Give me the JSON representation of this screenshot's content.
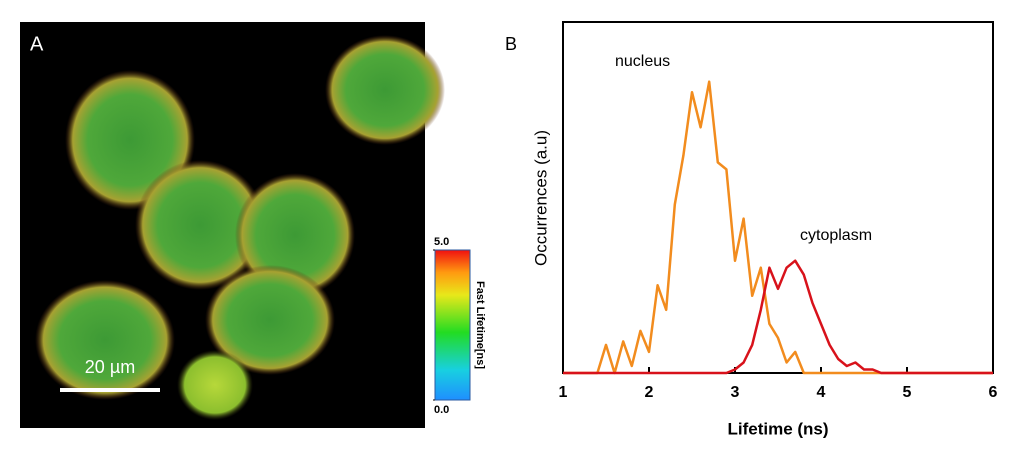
{
  "chart_data": [
    {
      "type": "image",
      "label": "A",
      "scale_bar": "20 µm",
      "colorbar": {
        "title": "Fast Lifetime[ns]",
        "clim": [
          0,
          5
        ],
        "ticks": [
          {
            "value": 0,
            "label": "0.0"
          },
          {
            "value": 5,
            "label": "5.0"
          }
        ]
      }
    },
    {
      "type": "line",
      "label": "B",
      "x_label": "Lifetime (ns)",
      "y_label": "Occurrences (a.u)",
      "annotations": [
        "nucleus",
        "cytoplasm"
      ],
      "x": [
        1.0,
        1.1,
        1.2,
        1.3,
        1.4,
        1.5,
        1.6,
        1.7,
        1.8,
        1.9,
        2.0,
        2.1,
        2.2,
        2.3,
        2.4,
        2.5,
        2.6,
        2.7,
        2.8,
        2.9,
        3.0,
        3.1,
        3.2,
        3.3,
        3.4,
        3.5,
        3.6,
        3.7,
        3.8,
        3.9,
        4.0,
        4.1,
        4.2,
        4.3,
        4.4,
        4.5,
        4.6,
        4.7,
        4.8,
        4.9,
        5.0,
        5.1,
        5.2,
        5.3,
        5.4,
        5.5,
        5.6,
        5.7,
        5.8,
        5.9,
        6.0
      ],
      "series": [
        {
          "name": "nucleus",
          "color": "#f28c1e",
          "values": [
            0,
            0,
            0,
            0,
            0,
            8,
            0,
            9,
            2,
            12,
            6,
            25,
            18,
            48,
            62,
            80,
            70,
            83,
            60,
            58,
            32,
            44,
            22,
            30,
            14,
            10,
            3,
            6,
            0,
            0,
            0,
            0,
            0,
            0,
            0,
            0,
            0,
            0,
            0,
            0,
            0,
            0,
            0,
            0,
            0,
            0,
            0,
            0,
            0,
            0,
            0
          ]
        },
        {
          "name": "cytoplasm",
          "color": "#d8121b",
          "values": [
            0,
            0,
            0,
            0,
            0,
            0,
            0,
            0,
            0,
            0,
            0,
            0,
            0,
            0,
            0,
            0,
            0,
            0,
            0,
            0,
            1,
            3,
            8,
            18,
            30,
            24,
            30,
            32,
            28,
            20,
            14,
            8,
            4,
            2,
            3,
            1,
            1,
            0,
            0,
            0,
            0,
            0,
            0,
            0,
            0,
            0,
            0,
            0,
            0,
            0,
            0
          ]
        }
      ],
      "xlim": [
        1,
        6
      ],
      "xticks": [
        1,
        2,
        3,
        4,
        5,
        6
      ],
      "ylim": [
        0,
        100
      ]
    }
  ]
}
